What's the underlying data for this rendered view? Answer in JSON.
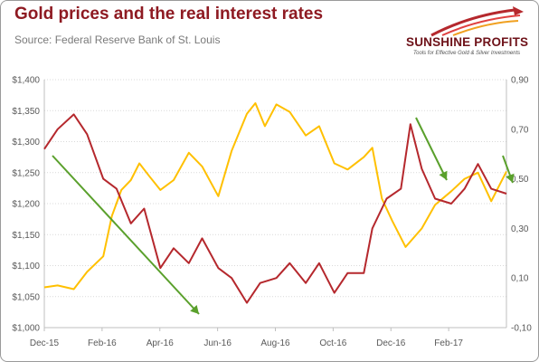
{
  "header": {
    "title": "Gold prices and the real interest rates",
    "subtitle": "Source: Federal Reserve Bank of St. Louis"
  },
  "logo": {
    "name": "SUNSHINE PROFITS",
    "tagline": "Tools for Effective Gold & Silver Investments"
  },
  "colors": {
    "gold_series": "#ffc000",
    "rates_series": "#b5282d",
    "arrows": "#5aa02c",
    "title": "#8e1a22"
  },
  "chart_data": {
    "type": "line",
    "title": "Gold prices and the real interest rates",
    "grid": true,
    "x_tick_labels": [
      "Dec-15",
      "Feb-16",
      "Apr-16",
      "Jun-16",
      "Aug-16",
      "Oct-16",
      "Dec-16",
      "Feb-17"
    ],
    "x_range": [
      "2015-12-01",
      "2017-03-31"
    ],
    "y_left": {
      "range": [
        1000,
        1400
      ],
      "tick_labels": [
        "$1,000",
        "$1,050",
        "$1,100",
        "$1,150",
        "$1,200",
        "$1,250",
        "$1,300",
        "$1,350",
        "$1,400"
      ]
    },
    "y_right": {
      "range": [
        -0.1,
        0.9
      ],
      "tick_labels": [
        "-0,10",
        "0,10",
        "0,30",
        "0,50",
        "0,70",
        "0,90"
      ]
    },
    "series": [
      {
        "axis": "left",
        "color": "#ffc000",
        "points": [
          [
            "2015-12-01",
            1065
          ],
          [
            "2015-12-15",
            1068
          ],
          [
            "2016-01-01",
            1062
          ],
          [
            "2016-01-15",
            1090
          ],
          [
            "2016-02-01",
            1115
          ],
          [
            "2016-02-10",
            1180
          ],
          [
            "2016-02-20",
            1222
          ],
          [
            "2016-03-01",
            1238
          ],
          [
            "2016-03-10",
            1265
          ],
          [
            "2016-03-20",
            1245
          ],
          [
            "2016-04-01",
            1222
          ],
          [
            "2016-04-15",
            1238
          ],
          [
            "2016-05-01",
            1282
          ],
          [
            "2016-05-15",
            1260
          ],
          [
            "2016-06-01",
            1212
          ],
          [
            "2016-06-15",
            1285
          ],
          [
            "2016-07-01",
            1345
          ],
          [
            "2016-07-10",
            1362
          ],
          [
            "2016-07-20",
            1325
          ],
          [
            "2016-08-01",
            1360
          ],
          [
            "2016-08-15",
            1348
          ],
          [
            "2016-09-01",
            1310
          ],
          [
            "2016-09-15",
            1325
          ],
          [
            "2016-10-01",
            1265
          ],
          [
            "2016-10-15",
            1255
          ],
          [
            "2016-11-01",
            1275
          ],
          [
            "2016-11-10",
            1290
          ],
          [
            "2016-11-20",
            1208
          ],
          [
            "2016-12-01",
            1172
          ],
          [
            "2016-12-15",
            1130
          ],
          [
            "2017-01-01",
            1160
          ],
          [
            "2017-01-15",
            1198
          ],
          [
            "2017-02-01",
            1220
          ],
          [
            "2017-02-15",
            1240
          ],
          [
            "2017-03-01",
            1250
          ],
          [
            "2017-03-15",
            1204
          ],
          [
            "2017-03-31",
            1252
          ]
        ]
      },
      {
        "axis": "right",
        "color": "#b5282d",
        "points": [
          [
            "2015-12-01",
            0.62
          ],
          [
            "2015-12-15",
            0.7
          ],
          [
            "2016-01-01",
            0.76
          ],
          [
            "2016-01-15",
            0.68
          ],
          [
            "2016-02-01",
            0.5
          ],
          [
            "2016-02-15",
            0.46
          ],
          [
            "2016-03-01",
            0.32
          ],
          [
            "2016-03-15",
            0.38
          ],
          [
            "2016-04-01",
            0.14
          ],
          [
            "2016-04-15",
            0.22
          ],
          [
            "2016-05-01",
            0.16
          ],
          [
            "2016-05-15",
            0.26
          ],
          [
            "2016-06-01",
            0.14
          ],
          [
            "2016-06-15",
            0.1
          ],
          [
            "2016-07-01",
            0.0
          ],
          [
            "2016-07-15",
            0.08
          ],
          [
            "2016-08-01",
            0.1
          ],
          [
            "2016-08-15",
            0.16
          ],
          [
            "2016-09-01",
            0.08
          ],
          [
            "2016-09-15",
            0.16
          ],
          [
            "2016-10-01",
            0.04
          ],
          [
            "2016-10-15",
            0.12
          ],
          [
            "2016-11-01",
            0.12
          ],
          [
            "2016-11-10",
            0.3
          ],
          [
            "2016-11-25",
            0.42
          ],
          [
            "2016-12-10",
            0.46
          ],
          [
            "2016-12-20",
            0.72
          ],
          [
            "2017-01-01",
            0.54
          ],
          [
            "2017-01-15",
            0.42
          ],
          [
            "2017-02-01",
            0.4
          ],
          [
            "2017-02-15",
            0.46
          ],
          [
            "2017-03-01",
            0.56
          ],
          [
            "2017-03-15",
            0.46
          ],
          [
            "2017-03-31",
            0.44
          ]
        ]
      }
    ]
  }
}
